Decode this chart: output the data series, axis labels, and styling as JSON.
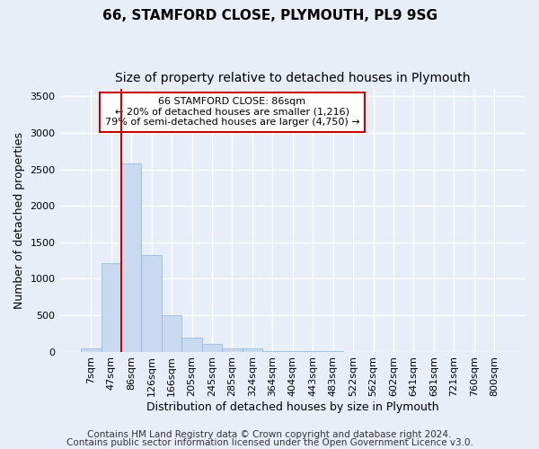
{
  "title1": "66, STAMFORD CLOSE, PLYMOUTH, PL9 9SG",
  "title2": "Size of property relative to detached houses in Plymouth",
  "xlabel": "Distribution of detached houses by size in Plymouth",
  "ylabel": "Number of detached properties",
  "annotation_title": "66 STAMFORD CLOSE: 86sqm",
  "annotation_line1": "← 20% of detached houses are smaller (1,216)",
  "annotation_line2": "79% of semi-detached houses are larger (4,750) →",
  "footer1": "Contains HM Land Registry data © Crown copyright and database right 2024.",
  "footer2": "Contains public sector information licensed under the Open Government Licence v3.0.",
  "bin_labels": [
    "7sqm",
    "47sqm",
    "86sqm",
    "126sqm",
    "166sqm",
    "205sqm",
    "245sqm",
    "285sqm",
    "324sqm",
    "364sqm",
    "404sqm",
    "443sqm",
    "483sqm",
    "522sqm",
    "562sqm",
    "602sqm",
    "641sqm",
    "681sqm",
    "721sqm",
    "760sqm",
    "800sqm"
  ],
  "bar_values": [
    50,
    1220,
    2580,
    1330,
    500,
    195,
    100,
    50,
    40,
    10,
    5,
    5,
    5,
    0,
    0,
    0,
    0,
    0,
    0,
    0,
    0
  ],
  "bar_color": "#c9d9f0",
  "bar_edge_color": "#8ab4d8",
  "highlight_index": 2,
  "highlight_line_color": "#cc0000",
  "ylim": [
    0,
    3600
  ],
  "yticks": [
    0,
    500,
    1000,
    1500,
    2000,
    2500,
    3000,
    3500
  ],
  "background_color": "#e8eef8",
  "grid_color": "#ffffff",
  "annotation_box_color": "#ffffff",
  "annotation_box_edge": "#cc0000",
  "title1_fontsize": 11,
  "title2_fontsize": 10,
  "axis_label_fontsize": 9,
  "tick_fontsize": 8,
  "footer_fontsize": 7.5
}
